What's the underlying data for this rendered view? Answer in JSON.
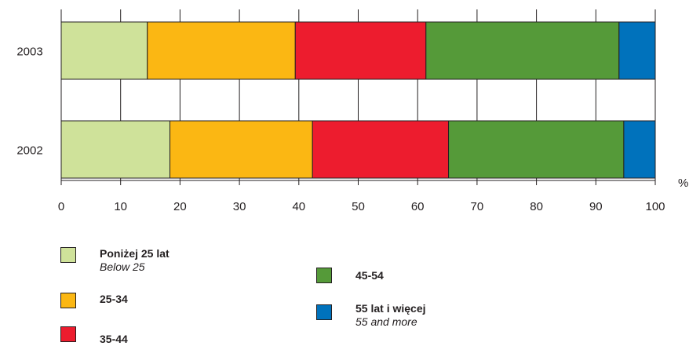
{
  "chart_data": {
    "type": "bar",
    "orientation": "horizontal",
    "stacked": true,
    "categories": [
      "2003",
      "2002"
    ],
    "series": [
      {
        "name": "Poniżej 25 lat",
        "name_en": "Below 25",
        "color": "#cfe29a",
        "values": [
          14.5,
          18.3
        ]
      },
      {
        "name": "25-34",
        "name_en": "",
        "color": "#fbb713",
        "values": [
          24.9,
          24.0
        ]
      },
      {
        "name": "35-44",
        "name_en": "",
        "color": "#ed1c2e",
        "values": [
          22.0,
          22.9
        ]
      },
      {
        "name": "45-54",
        "name_en": "",
        "color": "#559a39",
        "values": [
          32.5,
          29.5
        ]
      },
      {
        "name": "55 lat i więcej",
        "name_en": "55 and more",
        "color": "#0072bc",
        "values": [
          6.1,
          5.3
        ]
      }
    ],
    "xticks": [
      "0",
      "10",
      "20",
      "30",
      "40",
      "50",
      "60",
      "70",
      "80",
      "90",
      "100"
    ],
    "xlim": [
      0,
      100
    ],
    "unit": "%",
    "grid": "vertical",
    "legend_position": "bottom"
  }
}
